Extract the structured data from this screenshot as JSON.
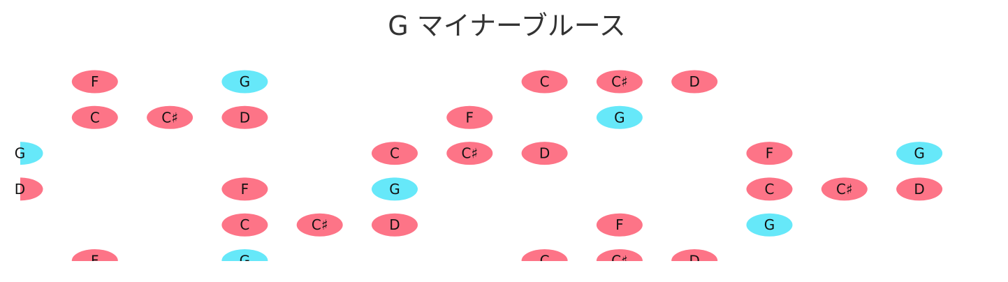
{
  "title": "G マイナーブルース",
  "colors": {
    "note": "#fd7487",
    "root": "#66e8f9",
    "label": "#111111",
    "title": "#333333"
  },
  "strings": [
    [
      null,
      "F",
      null,
      "G",
      null,
      null,
      null,
      "C",
      "C♯",
      "D",
      null,
      null,
      null
    ],
    [
      null,
      "C",
      "C♯",
      "D",
      null,
      null,
      "F",
      null,
      "G",
      null,
      null,
      null,
      null
    ],
    [
      "G",
      null,
      null,
      null,
      null,
      "C",
      "C♯",
      "D",
      null,
      null,
      "F",
      null,
      "G"
    ],
    [
      "D",
      null,
      null,
      "F",
      null,
      "G",
      null,
      null,
      null,
      null,
      "C",
      "C♯",
      "D"
    ],
    [
      null,
      null,
      null,
      "C",
      "C♯",
      "D",
      null,
      null,
      "F",
      null,
      "G",
      null,
      null
    ],
    [
      null,
      "F",
      null,
      "G",
      null,
      null,
      null,
      "C",
      "C♯",
      "D",
      null,
      null,
      null
    ]
  ],
  "root_note": "G"
}
